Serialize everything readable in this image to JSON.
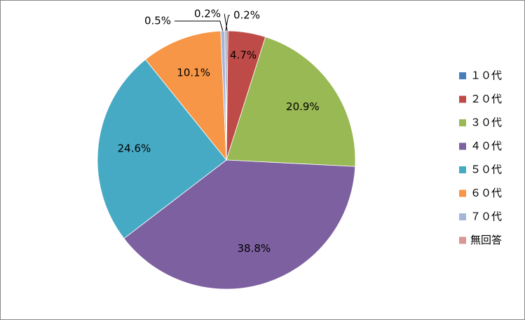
{
  "chart_data": {
    "type": "pie",
    "categories": [
      "１０代",
      "２０代",
      "３０代",
      "４０代",
      "５０代",
      "６０代",
      "７０代",
      "無回答"
    ],
    "values": [
      0.2,
      4.7,
      20.9,
      38.8,
      24.6,
      10.1,
      0.5,
      0.2
    ],
    "value_labels": [
      "0.2%",
      "4.7%",
      "20.9%",
      "38.8%",
      "24.6%",
      "10.1%",
      "0.5%",
      "0.2%"
    ],
    "colors": [
      "#4a7ebb",
      "#be4b48",
      "#98b954",
      "#7d60a0",
      "#46aac5",
      "#f79646",
      "#a5b5d8",
      "#d99694"
    ],
    "legend": "right"
  }
}
